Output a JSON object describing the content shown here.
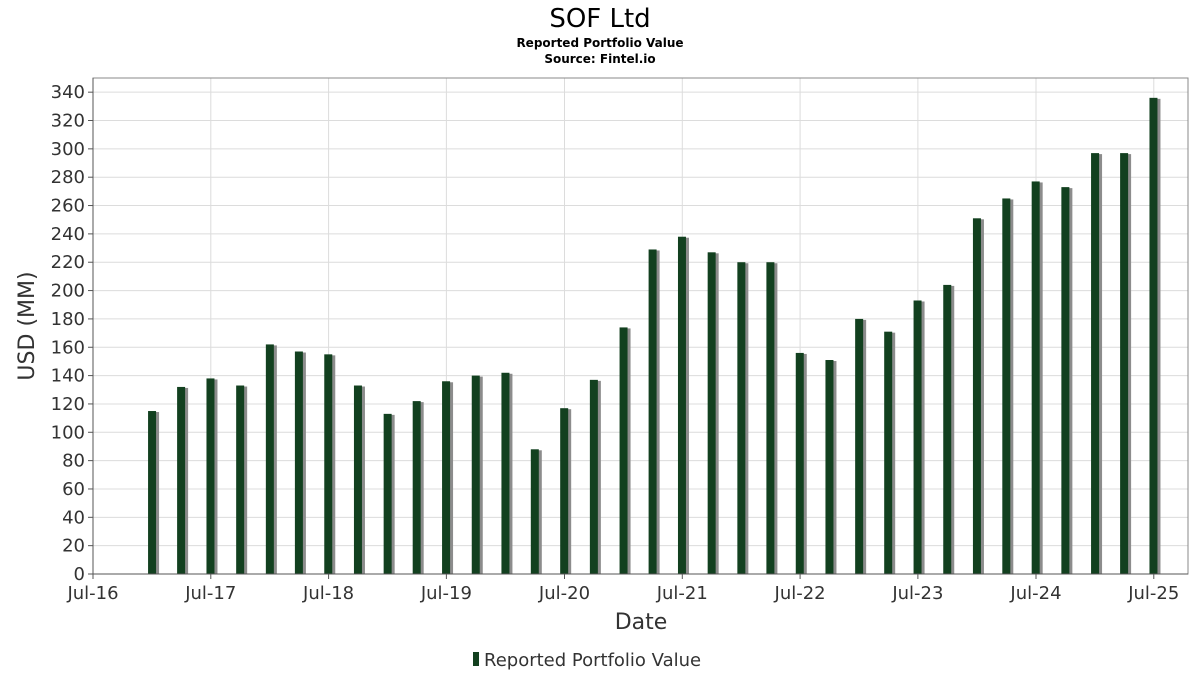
{
  "chart_data": {
    "type": "bar",
    "title": "SOF Ltd",
    "subtitle_lines": [
      "Reported Portfolio Value",
      "Source: Fintel.io"
    ],
    "xlabel": "Date",
    "ylabel": "USD (MM)",
    "ylim": [
      0,
      350
    ],
    "yticks": [
      0,
      20,
      40,
      60,
      80,
      100,
      120,
      140,
      160,
      180,
      200,
      220,
      240,
      260,
      280,
      300,
      320,
      340
    ],
    "xlim": [
      "2016-07-01",
      "2025-10-15"
    ],
    "xtick_labels": [
      {
        "date": "2016-07-01",
        "label": "Jul-16"
      },
      {
        "date": "2017-07-01",
        "label": "Jul-17"
      },
      {
        "date": "2018-07-01",
        "label": "Jul-18"
      },
      {
        "date": "2019-07-01",
        "label": "Jul-19"
      },
      {
        "date": "2020-07-01",
        "label": "Jul-20"
      },
      {
        "date": "2021-07-01",
        "label": "Jul-21"
      },
      {
        "date": "2022-07-01",
        "label": "Jul-22"
      },
      {
        "date": "2023-07-01",
        "label": "Jul-23"
      },
      {
        "date": "2024-07-01",
        "label": "Jul-24"
      },
      {
        "date": "2025-07-01",
        "label": "Jul-25"
      }
    ],
    "grid": true,
    "legend_position": "bottom-center",
    "series": [
      {
        "name": "Reported Portfolio Value",
        "color": "#12401f",
        "points": [
          {
            "x": "2016-12-31",
            "y": 115
          },
          {
            "x": "2017-03-31",
            "y": 132
          },
          {
            "x": "2017-06-30",
            "y": 138
          },
          {
            "x": "2017-09-30",
            "y": 133
          },
          {
            "x": "2017-12-31",
            "y": 162
          },
          {
            "x": "2018-03-31",
            "y": 157
          },
          {
            "x": "2018-06-30",
            "y": 155
          },
          {
            "x": "2018-09-30",
            "y": 133
          },
          {
            "x": "2018-12-31",
            "y": 113
          },
          {
            "x": "2019-03-31",
            "y": 122
          },
          {
            "x": "2019-06-30",
            "y": 136
          },
          {
            "x": "2019-09-30",
            "y": 140
          },
          {
            "x": "2019-12-31",
            "y": 142
          },
          {
            "x": "2020-03-31",
            "y": 88
          },
          {
            "x": "2020-06-30",
            "y": 117
          },
          {
            "x": "2020-09-30",
            "y": 137
          },
          {
            "x": "2020-12-31",
            "y": 174
          },
          {
            "x": "2021-03-31",
            "y": 229
          },
          {
            "x": "2021-06-30",
            "y": 238
          },
          {
            "x": "2021-09-30",
            "y": 227
          },
          {
            "x": "2021-12-31",
            "y": 220
          },
          {
            "x": "2022-03-31",
            "y": 220
          },
          {
            "x": "2022-06-30",
            "y": 156
          },
          {
            "x": "2022-09-30",
            "y": 151
          },
          {
            "x": "2022-12-31",
            "y": 180
          },
          {
            "x": "2023-03-31",
            "y": 171
          },
          {
            "x": "2023-06-30",
            "y": 193
          },
          {
            "x": "2023-09-30",
            "y": 204
          },
          {
            "x": "2023-12-31",
            "y": 251
          },
          {
            "x": "2024-03-31",
            "y": 265
          },
          {
            "x": "2024-06-30",
            "y": 277
          },
          {
            "x": "2024-09-30",
            "y": 273
          },
          {
            "x": "2024-12-31",
            "y": 297
          },
          {
            "x": "2025-03-31",
            "y": 297
          },
          {
            "x": "2025-06-30",
            "y": 336
          }
        ]
      }
    ]
  },
  "colors": {
    "bar": "#12401f",
    "bar_shadow": "#8c8c8c",
    "grid": "#dcdcdc",
    "plot_border": "#888888"
  }
}
